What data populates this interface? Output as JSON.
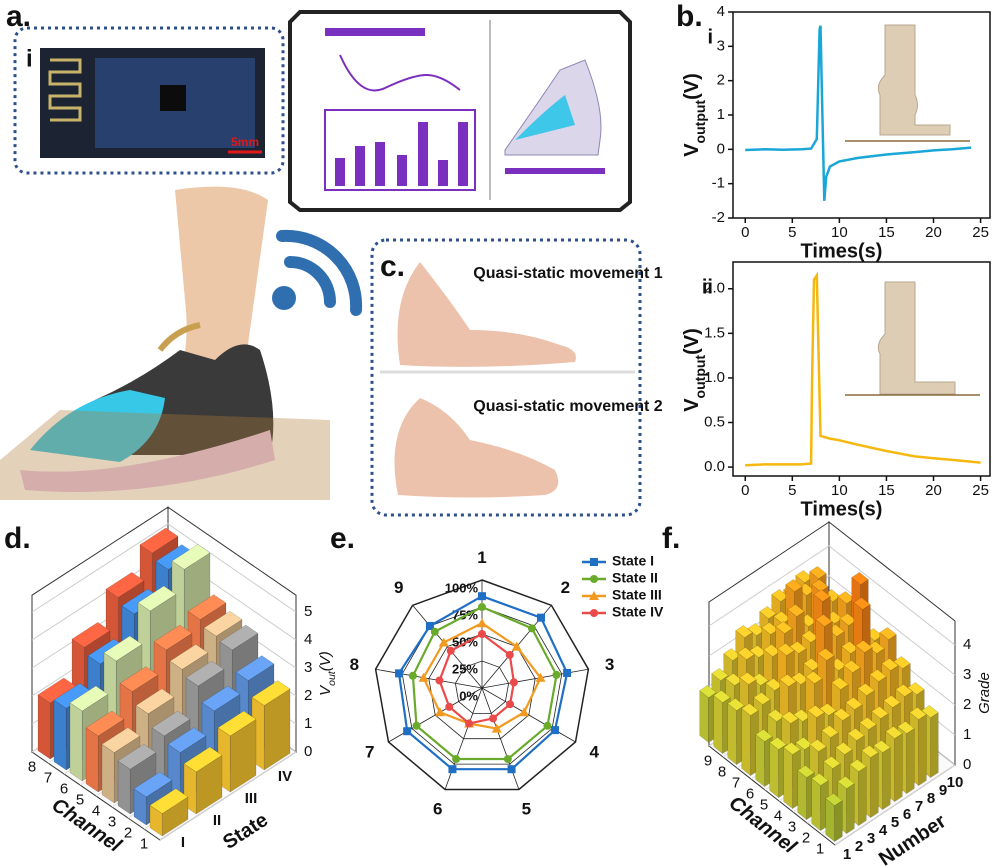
{
  "panel_a": {
    "label": "a.",
    "inset_label": "i",
    "scale_bar": "5mm"
  },
  "panel_c": {
    "label": "c.",
    "captions": [
      "Quasi-static movement 1",
      "Quasi-static movement 2"
    ]
  },
  "chart_data": [
    {
      "type": "line",
      "panel_label": "b.",
      "sublabel": "i",
      "xlabel": "Times(s)",
      "ylabel": {
        "main": "V",
        "sub": "output",
        "unit": "(V)"
      },
      "x": [
        0,
        2,
        4,
        6,
        7,
        7.6,
        7.9,
        8.0,
        8.2,
        8.4,
        8.6,
        9,
        10,
        12,
        15,
        18,
        20,
        22,
        24
      ],
      "series": [
        {
          "color": "#1aa7d8",
          "values": [
            -0.02,
            0,
            -0.01,
            0,
            0.02,
            0.3,
            3.5,
            3.6,
            1.0,
            -1.5,
            -0.8,
            -0.5,
            -0.35,
            -0.25,
            -0.15,
            -0.08,
            -0.03,
            0,
            0.05
          ]
        }
      ],
      "xlim": [
        -1.3,
        26
      ],
      "ylim": [
        -2,
        4
      ],
      "xticks": [
        0,
        5,
        10,
        15,
        20,
        25
      ],
      "yticks": [
        -2,
        -1,
        0,
        1,
        2,
        3,
        4
      ]
    },
    {
      "type": "line",
      "sublabel": "ii",
      "xlabel": "Times(s)",
      "ylabel": {
        "main": "V",
        "sub": "output",
        "unit": "(V)"
      },
      "x": [
        0,
        2,
        4,
        6,
        7,
        7.1,
        7.3,
        7.6,
        7.8,
        8,
        9,
        10,
        12,
        15,
        18,
        20,
        22,
        25
      ],
      "series": [
        {
          "color": "#f5b80f",
          "values": [
            0.02,
            0.03,
            0.03,
            0.03,
            0.04,
            1.0,
            2.1,
            2.15,
            1.2,
            0.35,
            0.32,
            0.3,
            0.25,
            0.18,
            0.12,
            0.1,
            0.08,
            0.05
          ]
        }
      ],
      "xlim": [
        -1.3,
        26
      ],
      "ylim": [
        -0.1,
        2.3
      ],
      "xticks": [
        0,
        5,
        10,
        15,
        20,
        25
      ],
      "yticks": [
        {
          "value": 0,
          "label": "0.0"
        },
        {
          "value": 0.5,
          "label": "0.5"
        },
        {
          "value": 1,
          "label": "1.0"
        },
        {
          "value": 1.5,
          "label": "1.5"
        },
        {
          "value": 2,
          "label": "2.0"
        }
      ]
    },
    {
      "type": "bar3d",
      "panel_label": "d.",
      "xlabel": "Channel",
      "ylabel": "State",
      "zlabel": {
        "main": "V",
        "sub": "out",
        "unit": "(V)"
      },
      "channels": [
        "1",
        "2",
        "3",
        "4",
        "5",
        "6",
        "7",
        "8"
      ],
      "states": [
        "I",
        "II",
        "III",
        "IV"
      ],
      "channel_colors": [
        "#f2c12e",
        "#5b8fd6",
        "#9a9a9a",
        "#d9b98c",
        "#f07a4a",
        "#c9dba0",
        "#3f87d8",
        "#e0593a"
      ],
      "values": [
        [
          0.8,
          1.0,
          1.6,
          1.8,
          2.0,
          2.5,
          2.2,
          2.0
        ],
        [
          1.5,
          1.8,
          2.0,
          2.4,
          2.8,
          3.5,
          3.0,
          3.2
        ],
        [
          2.0,
          2.5,
          3.0,
          3.2,
          3.5,
          4.5,
          4.0,
          4.2
        ],
        [
          2.3,
          2.8,
          3.5,
          3.6,
          3.8,
          5.2,
          4.8,
          5.0
        ]
      ],
      "zlim": [
        0,
        5.6
      ],
      "zticks": [
        0,
        1,
        2,
        3,
        4,
        5
      ]
    },
    {
      "type": "radar",
      "panel_label": "e.",
      "categories": [
        "1",
        "2",
        "3",
        "4",
        "5",
        "6",
        "7",
        "8",
        "9"
      ],
      "rlim": [
        0,
        100
      ],
      "rticks": [
        {
          "value": 0,
          "label": "0%"
        },
        {
          "value": 25,
          "label": "25%"
        },
        {
          "value": 50,
          "label": "50%"
        },
        {
          "value": 75,
          "label": "75%"
        },
        {
          "value": 100,
          "label": "100%"
        }
      ],
      "series": [
        {
          "name": "State I",
          "color": "#1f6fc5",
          "marker": "square",
          "values": [
            85,
            85,
            80,
            78,
            80,
            80,
            80,
            78,
            75
          ]
        },
        {
          "name": "State II",
          "color": "#6aaa2a",
          "marker": "circle",
          "values": [
            75,
            72,
            70,
            70,
            70,
            70,
            70,
            65,
            68
          ]
        },
        {
          "name": "State III",
          "color": "#f29a1f",
          "marker": "triangle",
          "values": [
            60,
            50,
            55,
            45,
            40,
            35,
            45,
            55,
            55
          ]
        },
        {
          "name": "State IV",
          "color": "#ea4a4a",
          "marker": "circle",
          "values": [
            50,
            40,
            30,
            30,
            30,
            35,
            35,
            40,
            45
          ]
        }
      ]
    },
    {
      "type": "bar3d",
      "panel_label": "f.",
      "xlabel": "Channel",
      "ylabel": "Number",
      "zlabel": {
        "main": "Grade"
      },
      "channels": [
        "1",
        "2",
        "3",
        "4",
        "5",
        "6",
        "7",
        "8",
        "9"
      ],
      "states": [
        "1",
        "2",
        "3",
        "4",
        "5",
        "6",
        "7",
        "8",
        "9",
        "10"
      ],
      "colormap": [
        "#5e9a2a",
        "#c8c832",
        "#f2b020",
        "#f07010"
      ],
      "values": [
        [
          1.2,
          1.5,
          1.4,
          1.8,
          1.6,
          1.5,
          2.0,
          1.8,
          1.7,
          1.5
        ],
        [
          1.5,
          1.8,
          2.0,
          1.7,
          2.2,
          1.9,
          2.1,
          2.4,
          2.0,
          1.8
        ],
        [
          1.8,
          2.0,
          2.2,
          2.5,
          2.0,
          2.8,
          2.3,
          2.1,
          2.6,
          2.2
        ],
        [
          2.0,
          2.2,
          2.5,
          2.3,
          3.0,
          2.6,
          3.2,
          2.8,
          2.4,
          2.7
        ],
        [
          1.9,
          2.3,
          2.6,
          2.9,
          3.5,
          2.8,
          3.0,
          3.3,
          2.9,
          2.5
        ],
        [
          2.1,
          2.4,
          2.8,
          3.2,
          2.9,
          4.0,
          3.1,
          3.6,
          3.0,
          2.8
        ],
        [
          2.0,
          2.5,
          3.0,
          3.6,
          3.2,
          3.4,
          4.2,
          3.0,
          3.8,
          3.1
        ],
        [
          2.2,
          2.6,
          3.1,
          3.3,
          4.4,
          3.5,
          3.2,
          3.9,
          3.4,
          3.0
        ],
        [
          2.0,
          2.4,
          2.9,
          3.5,
          3.1,
          4.6,
          3.6,
          3.3,
          3.7,
          3.2
        ]
      ],
      "zlim": [
        0,
        4.8
      ],
      "zticks": [
        0,
        1,
        2,
        3,
        4
      ]
    }
  ]
}
